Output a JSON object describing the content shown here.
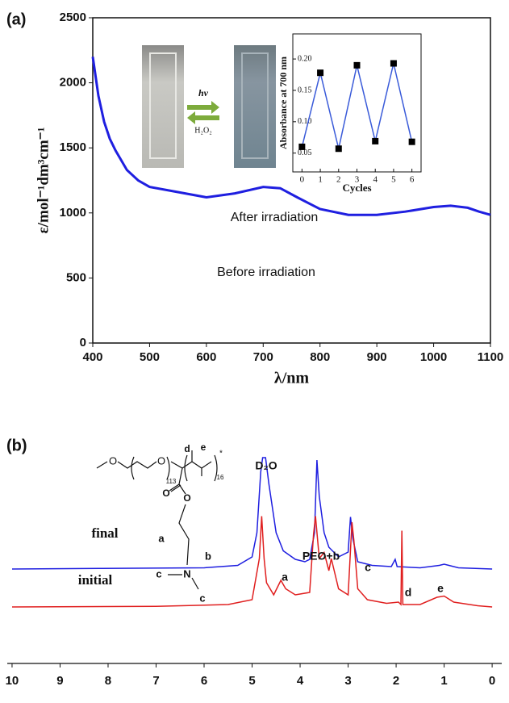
{
  "panel_labels": [
    "(a)",
    "(b)"
  ],
  "photo_labels": {
    "forward": "hν",
    "reverse": "H₂O₂"
  },
  "structure": {
    "labels": [
      "O",
      "O",
      "113",
      "16",
      "*",
      "d",
      "e",
      "O",
      "O",
      "a",
      "b",
      "N",
      "c",
      "c"
    ]
  },
  "chart_data": [
    {
      "type": "line",
      "xlabel": "λ/nm",
      "ylabel": "ε/mol⁻¹dm³cm⁻¹",
      "color": "#1f1fe0",
      "x": [
        400,
        405,
        410,
        420,
        430,
        440,
        460,
        480,
        500,
        550,
        600,
        650,
        700,
        730,
        760,
        800,
        850,
        900,
        950,
        1000,
        1030,
        1060,
        1080,
        1100
      ],
      "values": [
        2200,
        2050,
        1900,
        1700,
        1570,
        1480,
        1330,
        1250,
        1200,
        1160,
        1120,
        1150,
        1200,
        1190,
        1120,
        1030,
        985,
        985,
        1010,
        1045,
        1055,
        1040,
        1010,
        985
      ],
      "xlim": [
        400,
        1100
      ],
      "ylim": [
        0,
        2500
      ],
      "xticks": [
        400,
        500,
        600,
        700,
        800,
        900,
        1000,
        1100
      ],
      "yticks": [
        0,
        500,
        1000,
        1500,
        2000,
        2500
      ],
      "annotations": [
        "After irradiation",
        "Before irradiation"
      ]
    },
    {
      "type": "line",
      "xlabel": "Cycles",
      "ylabel": "Absorbance at 700 nm",
      "color": "#3a5bd9",
      "marker_color": "#000000",
      "x": [
        0,
        1,
        2,
        3,
        4,
        5,
        6
      ],
      "values": [
        0.06,
        0.178,
        0.057,
        0.19,
        0.069,
        0.193,
        0.068
      ],
      "xlim": [
        -0.5,
        6.5
      ],
      "ylim": [
        0.02,
        0.24
      ],
      "xticks": [
        0,
        1,
        2,
        3,
        4,
        5,
        6
      ],
      "yticks": [
        0.05,
        {
          "value": 0.1,
          "label": "0.10"
        },
        0.15,
        {
          "value": 0.2,
          "label": "0.20"
        }
      ]
    },
    {
      "type": "line",
      "xlim": [
        10.1,
        -0.2
      ],
      "ylim": [
        0,
        100
      ],
      "xticks": [
        10,
        9,
        8,
        7,
        6,
        5,
        4,
        3,
        2,
        1,
        0
      ],
      "series": [
        {
          "name": "final",
          "color": "#1f1fe0",
          "x": [
            10,
            8.2,
            6,
            5.3,
            5.0,
            4.9,
            4.82,
            4.78,
            4.72,
            4.65,
            4.5,
            4.35,
            4.1,
            3.9,
            3.8,
            3.7,
            3.65,
            3.6,
            3.5,
            3.4,
            3.2,
            3.0,
            2.95,
            2.9,
            2.8,
            2.5,
            2.1,
            2.02,
            1.98,
            1.5,
            1.1,
            1.0,
            0.9,
            0.7,
            0
          ],
          "values": [
            0,
            0.5,
            1,
            3,
            10,
            30,
            80,
            92,
            92,
            70,
            30,
            15,
            8,
            6,
            8,
            30,
            90,
            60,
            30,
            18,
            10,
            14,
            43,
            25,
            6,
            3,
            2,
            8,
            2,
            1,
            3,
            4,
            3,
            1,
            0
          ]
        },
        {
          "name": "initial",
          "color": "#e01f1f",
          "x": [
            10,
            7,
            5.5,
            5.0,
            4.85,
            4.8,
            4.75,
            4.7,
            4.55,
            4.4,
            4.3,
            4.1,
            3.8,
            3.72,
            3.68,
            3.6,
            3.5,
            3.4,
            3.35,
            3.2,
            3.0,
            2.92,
            2.88,
            2.8,
            2.6,
            2.2,
            1.95,
            1.9,
            1.88,
            1.86,
            1.5,
            1.15,
            1.0,
            0.8,
            0.3,
            0
          ],
          "values": [
            0,
            0.5,
            2,
            6,
            40,
            75,
            40,
            20,
            10,
            22,
            15,
            10,
            12,
            60,
            75,
            40,
            45,
            30,
            40,
            15,
            10,
            70,
            55,
            15,
            6,
            3,
            4,
            2,
            63,
            2,
            2,
            8,
            9,
            4,
            1,
            0
          ]
        }
      ],
      "annotations": [
        "D₂O",
        "PEO+b",
        "a",
        "c",
        "d",
        "e"
      ]
    }
  ]
}
